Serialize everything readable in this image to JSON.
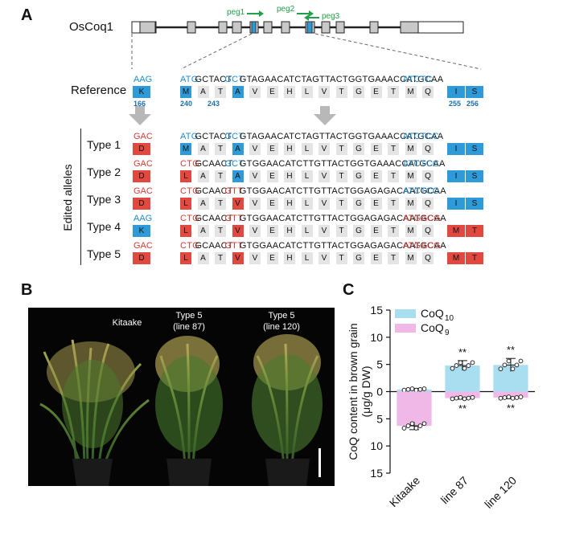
{
  "panels": {
    "a": "A",
    "b": "B",
    "c": "C"
  },
  "gene": {
    "name": "OsCoq1",
    "peg1": "peg1",
    "peg2": "peg2",
    "peg3": "peg3"
  },
  "reference": {
    "label": "Reference",
    "codon166": "AAG",
    "aa166": "K",
    "num166": "166",
    "nt": [
      [
        "ATG",
        "blue"
      ],
      [
        "GCTACT",
        ""
      ],
      [
        "GCT",
        "blue"
      ],
      [
        "GTAGAACATCTAGTTACTGGTGAAACCATGCAA",
        ""
      ],
      [
        "ATCTC",
        "blue"
      ]
    ],
    "aa": [
      [
        "M",
        "blue"
      ],
      [
        "A",
        "gray"
      ],
      [
        "T",
        "gray"
      ],
      [
        "A",
        "blue"
      ],
      [
        "V",
        "gray"
      ],
      [
        "E",
        "gray"
      ],
      [
        "H",
        "gray"
      ],
      [
        "L",
        "gray"
      ],
      [
        "V",
        "gray"
      ],
      [
        "T",
        "gray"
      ],
      [
        "G",
        "gray"
      ],
      [
        "E",
        "gray"
      ],
      [
        "T",
        "gray"
      ],
      [
        "M",
        "gray"
      ],
      [
        "Q",
        "gray"
      ],
      [
        "I",
        "blue"
      ],
      [
        "S",
        "blue"
      ]
    ],
    "num240": "240",
    "num243": "243",
    "num255": "255",
    "num256": "256"
  },
  "edited_label": "Edited alleles",
  "types": [
    {
      "label": "Type 1",
      "codon": "GAC",
      "codon_color": "red",
      "aa166": "D",
      "aa_color": "red",
      "nt": [
        [
          "ATG",
          "blue"
        ],
        [
          "GCTACT",
          ""
        ],
        [
          "GCT",
          "blue"
        ],
        [
          "GTAGAACATCTAGTTACTGGTGAAACCATGCAA",
          ""
        ],
        [
          "ATCTCC",
          "blue"
        ]
      ],
      "aa": [
        [
          "M",
          "blue"
        ],
        [
          "A",
          "gray"
        ],
        [
          "T",
          "gray"
        ],
        [
          "A",
          "blue"
        ],
        [
          "V",
          "gray"
        ],
        [
          "E",
          "gray"
        ],
        [
          "H",
          "gray"
        ],
        [
          "L",
          "gray"
        ],
        [
          "V",
          "gray"
        ],
        [
          "T",
          "gray"
        ],
        [
          "G",
          "gray"
        ],
        [
          "E",
          "gray"
        ],
        [
          "T",
          "gray"
        ],
        [
          "M",
          "gray"
        ],
        [
          "Q",
          "gray"
        ],
        [
          "I",
          "blue"
        ],
        [
          "S",
          "blue"
        ]
      ]
    },
    {
      "label": "Type 2",
      "codon": "GAC",
      "codon_color": "red",
      "aa166": "D",
      "aa_color": "red",
      "nt": [
        [
          "CTG",
          "red"
        ],
        [
          "GCAACT",
          ""
        ],
        [
          "GCT",
          "blue"
        ],
        [
          "GTGGAACATCTTGTTACTGGTGAAACCATGCAA",
          ""
        ],
        [
          "ATCTCC",
          "blue"
        ]
      ],
      "aa": [
        [
          "L",
          "red"
        ],
        [
          "A",
          "gray"
        ],
        [
          "T",
          "gray"
        ],
        [
          "A",
          "blue"
        ],
        [
          "V",
          "gray"
        ],
        [
          "E",
          "gray"
        ],
        [
          "H",
          "gray"
        ],
        [
          "L",
          "gray"
        ],
        [
          "V",
          "gray"
        ],
        [
          "T",
          "gray"
        ],
        [
          "G",
          "gray"
        ],
        [
          "E",
          "gray"
        ],
        [
          "T",
          "gray"
        ],
        [
          "M",
          "gray"
        ],
        [
          "Q",
          "gray"
        ],
        [
          "I",
          "blue"
        ],
        [
          "S",
          "blue"
        ]
      ]
    },
    {
      "label": "Type 3",
      "codon": "GAC",
      "codon_color": "red",
      "aa166": "D",
      "aa_color": "red",
      "nt": [
        [
          "CTG",
          "red"
        ],
        [
          "GCAACT",
          ""
        ],
        [
          "GTT",
          "red"
        ],
        [
          "GTGGAACATCTTGTTACTGGAGAGACAATGCAA",
          ""
        ],
        [
          "ATCTCC",
          "blue"
        ]
      ],
      "aa": [
        [
          "L",
          "red"
        ],
        [
          "A",
          "gray"
        ],
        [
          "T",
          "gray"
        ],
        [
          "V",
          "red"
        ],
        [
          "V",
          "gray"
        ],
        [
          "E",
          "gray"
        ],
        [
          "H",
          "gray"
        ],
        [
          "L",
          "gray"
        ],
        [
          "V",
          "gray"
        ],
        [
          "T",
          "gray"
        ],
        [
          "G",
          "gray"
        ],
        [
          "E",
          "gray"
        ],
        [
          "T",
          "gray"
        ],
        [
          "M",
          "gray"
        ],
        [
          "Q",
          "gray"
        ],
        [
          "I",
          "blue"
        ],
        [
          "S",
          "blue"
        ]
      ]
    },
    {
      "label": "Type 4",
      "codon": "AAG",
      "codon_color": "blue",
      "aa166": "K",
      "aa_color": "blue",
      "nt": [
        [
          "CTG",
          "red"
        ],
        [
          "GCAACT",
          ""
        ],
        [
          "GTT",
          "red"
        ],
        [
          "GTGGAACATCTTGTTACTGGAGAGACAATGCAA",
          ""
        ],
        [
          "ATGACG",
          "red"
        ]
      ],
      "aa": [
        [
          "L",
          "red"
        ],
        [
          "A",
          "gray"
        ],
        [
          "T",
          "gray"
        ],
        [
          "V",
          "red"
        ],
        [
          "V",
          "gray"
        ],
        [
          "E",
          "gray"
        ],
        [
          "H",
          "gray"
        ],
        [
          "L",
          "gray"
        ],
        [
          "V",
          "gray"
        ],
        [
          "T",
          "gray"
        ],
        [
          "G",
          "gray"
        ],
        [
          "E",
          "gray"
        ],
        [
          "T",
          "gray"
        ],
        [
          "M",
          "gray"
        ],
        [
          "Q",
          "gray"
        ],
        [
          "M",
          "red"
        ],
        [
          "T",
          "red"
        ]
      ]
    },
    {
      "label": "Type 5",
      "codon": "GAC",
      "codon_color": "red",
      "aa166": "D",
      "aa_color": "red",
      "nt": [
        [
          "CTG",
          "red"
        ],
        [
          "GCAACT",
          ""
        ],
        [
          "GTT",
          "red"
        ],
        [
          "GTGGAACATCTTGTTACTGGAGAGACAATGCAA",
          ""
        ],
        [
          "ATGACG",
          "red"
        ]
      ],
      "aa": [
        [
          "L",
          "red"
        ],
        [
          "A",
          "gray"
        ],
        [
          "T",
          "gray"
        ],
        [
          "V",
          "red"
        ],
        [
          "V",
          "gray"
        ],
        [
          "E",
          "gray"
        ],
        [
          "H",
          "gray"
        ],
        [
          "L",
          "gray"
        ],
        [
          "V",
          "gray"
        ],
        [
          "T",
          "gray"
        ],
        [
          "G",
          "gray"
        ],
        [
          "E",
          "gray"
        ],
        [
          "T",
          "gray"
        ],
        [
          "M",
          "gray"
        ],
        [
          "Q",
          "gray"
        ],
        [
          "M",
          "red"
        ],
        [
          "T",
          "red"
        ]
      ]
    }
  ],
  "photo": {
    "label1": "Kitaake",
    "label2a": "Type 5",
    "label2b": "(line 87)",
    "label3a": "Type 5",
    "label3b": "(line 120)"
  },
  "colors": {
    "blue": "#2f9ad8",
    "red": "#e04840",
    "gray": "#e4e4e4",
    "green": "#22a04a",
    "coq10": "#a9ddf0",
    "coq9": "#f0b8e6"
  },
  "chart_data": {
    "type": "bar",
    "title": "",
    "ylabel": "CoQ content in brown grain",
    "ylabel_units": "(μg/g DW)",
    "categories": [
      "Kitaake",
      "line 87",
      "line 120"
    ],
    "ylim": [
      -15,
      15
    ],
    "yticks": [
      "15",
      "10",
      "5",
      "0",
      "5",
      "10",
      "15"
    ],
    "series": [
      {
        "name": "CoQ",
        "sub": "10",
        "values": [
          0.4,
          4.8,
          4.9
        ],
        "err": [
          0.2,
          0.9,
          1.2
        ],
        "sig": [
          "",
          "**",
          "**"
        ]
      },
      {
        "name": "CoQ",
        "sub": "9",
        "values": [
          -6.3,
          -1.2,
          -1.1
        ],
        "err": [
          0.7,
          0.2,
          0.2
        ],
        "sig": [
          "",
          "**",
          "**"
        ]
      }
    ]
  }
}
